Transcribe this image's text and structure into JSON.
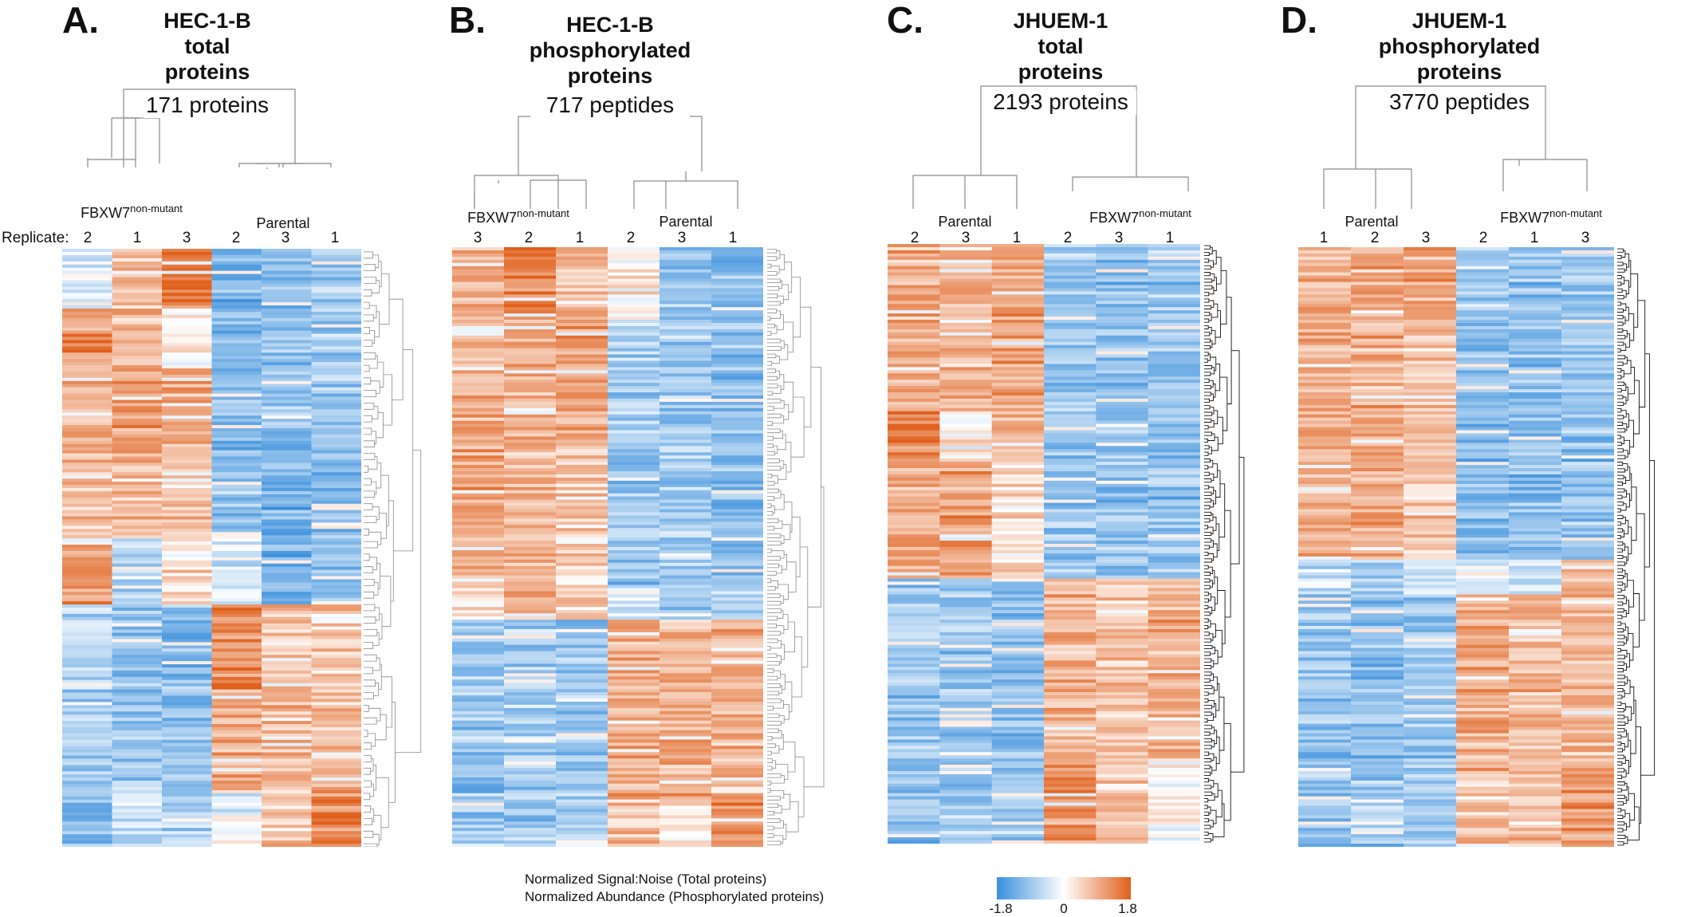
{
  "replicate_caption": "Replicate:",
  "panels": [
    {
      "letter": "A.",
      "title_lines": [
        "HEC-1-B",
        "total",
        "proteins"
      ],
      "count_label": "171 proteins",
      "groups": [
        {
          "name": "FBXW7",
          "sup": "non-mutant",
          "replicates": [
            "2",
            "1",
            "3"
          ]
        },
        {
          "name": "Parental",
          "sup": "",
          "replicates": [
            "2",
            "3",
            "1"
          ]
        }
      ]
    },
    {
      "letter": "B.",
      "title_lines": [
        "HEC-1-B",
        "phosphorylated",
        "proteins"
      ],
      "count_label": "717 peptides",
      "groups": [
        {
          "name": "FBXW7",
          "sup": "non-mutant",
          "replicates": [
            "3",
            "2",
            "1"
          ]
        },
        {
          "name": "Parental",
          "sup": "",
          "replicates": [
            "2",
            "3",
            "1"
          ]
        }
      ]
    },
    {
      "letter": "C.",
      "title_lines": [
        "JHUEM-1",
        "total",
        "proteins"
      ],
      "count_label": "2193 proteins",
      "groups": [
        {
          "name": "Parental",
          "sup": "",
          "replicates": [
            "2",
            "3",
            "1"
          ]
        },
        {
          "name": "FBXW7",
          "sup": "non-mutant",
          "replicates": [
            "2",
            "3",
            "1"
          ]
        }
      ]
    },
    {
      "letter": "D.",
      "title_lines": [
        "JHUEM-1",
        "phosphorylated",
        "proteins"
      ],
      "count_label": "3770 peptides",
      "groups": [
        {
          "name": "Parental",
          "sup": "",
          "replicates": [
            "1",
            "2",
            "3"
          ]
        },
        {
          "name": "FBXW7",
          "sup": "non-mutant",
          "replicates": [
            "2",
            "1",
            "3"
          ]
        }
      ]
    }
  ],
  "legend": {
    "line1": "Normalized Signal:Noise (Total proteins)",
    "line2": "Normalized Abundance (Phosphorylated proteins)",
    "min_label": "-1.8",
    "mid_label": "0",
    "max_label": "1.8"
  },
  "colors": {
    "low": "#3a8fdc",
    "mid": "#ffffff",
    "high": "#e0601c",
    "dendrogram": "#8a8a8a",
    "dendrogram_dense": "#111111"
  },
  "chart_data": [
    {
      "type": "heatmap",
      "title": "HEC-1-B total proteins",
      "columns": [
        "FBXW7 2",
        "FBXW7 1",
        "FBXW7 3",
        "Parental 2",
        "Parental 3",
        "Parental 1"
      ],
      "n_rows": 171,
      "value_range": [
        -1.8,
        1.8
      ],
      "row_blocks": [
        {
          "fraction": 0.1,
          "values": [
            -0.3,
            0.6,
            1.6,
            -1.2,
            -1.0,
            -0.9
          ]
        },
        {
          "fraction": 0.1,
          "values": [
            1.2,
            0.9,
            0.2,
            -1.1,
            -1.0,
            -0.8
          ]
        },
        {
          "fraction": 0.14,
          "values": [
            0.9,
            1.0,
            0.9,
            -1.1,
            -1.0,
            -0.9
          ]
        },
        {
          "fraction": 0.14,
          "values": [
            0.8,
            0.8,
            0.7,
            -1.0,
            -1.2,
            -1.0
          ]
        },
        {
          "fraction": 0.11,
          "values": [
            1.2,
            -0.6,
            0.4,
            -0.4,
            -1.1,
            -1.0
          ]
        },
        {
          "fraction": 0.14,
          "values": [
            -0.7,
            -1.0,
            -1.1,
            1.3,
            0.7,
            0.6
          ]
        },
        {
          "fraction": 0.17,
          "values": [
            -0.8,
            -0.9,
            -1.0,
            0.9,
            0.8,
            0.7
          ]
        },
        {
          "fraction": 0.1,
          "values": [
            -1.0,
            -0.5,
            -0.7,
            -0.1,
            0.6,
            1.4
          ]
        }
      ]
    },
    {
      "type": "heatmap",
      "title": "HEC-1-B phosphorylated proteins",
      "columns": [
        "FBXW7 3",
        "FBXW7 2",
        "FBXW7 1",
        "Parental 2",
        "Parental 3",
        "Parental 1"
      ],
      "n_rows": 717,
      "value_range": [
        -1.8,
        1.8
      ],
      "row_blocks": [
        {
          "fraction": 0.12,
          "values": [
            0.8,
            1.4,
            0.7,
            0.2,
            -1.0,
            -1.1
          ]
        },
        {
          "fraction": 0.2,
          "values": [
            0.9,
            0.9,
            1.0,
            -0.8,
            -0.9,
            -1.0
          ]
        },
        {
          "fraction": 0.24,
          "values": [
            1.0,
            0.8,
            0.6,
            -0.9,
            -0.8,
            -1.1
          ]
        },
        {
          "fraction": 0.06,
          "values": [
            0.5,
            1.0,
            0.5,
            -0.4,
            -0.8,
            -0.7
          ]
        },
        {
          "fraction": 0.3,
          "values": [
            -0.9,
            -0.8,
            -0.9,
            0.9,
            0.9,
            0.8
          ]
        },
        {
          "fraction": 0.08,
          "values": [
            -0.8,
            -0.9,
            -0.7,
            0.6,
            0.4,
            1.2
          ]
        }
      ]
    },
    {
      "type": "heatmap",
      "title": "JHUEM-1 total proteins",
      "columns": [
        "Parental 2",
        "Parental 3",
        "Parental 1",
        "FBXW7 2",
        "FBXW7 3",
        "FBXW7 1"
      ],
      "n_rows": 2193,
      "value_range": [
        -1.8,
        1.8
      ],
      "row_blocks": [
        {
          "fraction": 0.28,
          "values": [
            0.9,
            0.8,
            1.0,
            -0.9,
            -1.0,
            -0.9
          ]
        },
        {
          "fraction": 0.08,
          "values": [
            1.4,
            0.2,
            0.7,
            -1.0,
            -0.9,
            -1.0
          ]
        },
        {
          "fraction": 0.2,
          "values": [
            0.9,
            1.1,
            0.4,
            -0.9,
            -1.0,
            -1.0
          ]
        },
        {
          "fraction": 0.3,
          "values": [
            -0.9,
            -0.9,
            -1.0,
            0.9,
            0.7,
            0.9
          ]
        },
        {
          "fraction": 0.14,
          "values": [
            -1.0,
            -0.9,
            -0.9,
            1.2,
            0.6,
            0.1
          ]
        }
      ]
    },
    {
      "type": "heatmap",
      "title": "JHUEM-1 phosphorylated proteins",
      "columns": [
        "Parental 1",
        "Parental 2",
        "Parental 3",
        "FBXW7 2",
        "FBXW7 1",
        "FBXW7 3"
      ],
      "n_rows": 3770,
      "value_range": [
        -1.8,
        1.8
      ],
      "row_blocks": [
        {
          "fraction": 0.12,
          "values": [
            0.8,
            0.9,
            1.0,
            -0.8,
            -1.0,
            -0.9
          ]
        },
        {
          "fraction": 0.4,
          "values": [
            0.9,
            0.9,
            0.6,
            -1.0,
            -1.0,
            -1.0
          ]
        },
        {
          "fraction": 0.06,
          "values": [
            -0.6,
            -0.8,
            -0.4,
            -0.2,
            -0.6,
            0.6
          ]
        },
        {
          "fraction": 0.3,
          "values": [
            -0.9,
            -1.0,
            -0.9,
            0.9,
            0.8,
            0.8
          ]
        },
        {
          "fraction": 0.12,
          "values": [
            -1.0,
            -0.9,
            -0.8,
            0.6,
            0.7,
            1.1
          ]
        }
      ]
    }
  ]
}
